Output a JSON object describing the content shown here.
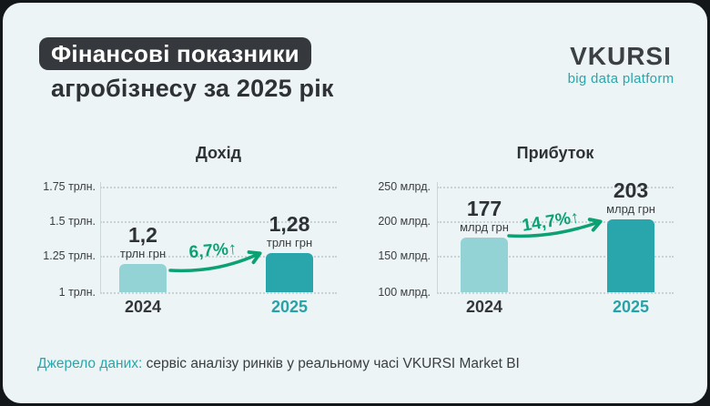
{
  "header": {
    "title_badge": "Фінансові показники",
    "title_line2": "агробізнесу за 2025 рік",
    "logo": {
      "name": "VKURSI",
      "tagline": "big data platform"
    }
  },
  "footer": {
    "source_label": "Джерело даних:",
    "source_text": " сервіс аналізу ринків у реальному часі VKURSI Market BI"
  },
  "colors": {
    "outer_background": "#14171a",
    "card_background": "#edf4f6",
    "badge_background": "#35383c",
    "accent_teal": "#26a3a9",
    "bar_2024": "#93d3d5",
    "bar_2025": "#29a6ab",
    "growth_green": "#0ba173",
    "dark_text": "#2e3236"
  },
  "chart_data": [
    {
      "type": "bar",
      "title": "Дохід",
      "categories": [
        "2024",
        "2025"
      ],
      "values": [
        1.2,
        1.28
      ],
      "value_labels": [
        "1,2",
        "1,28"
      ],
      "unit": "трлн грн",
      "growth_label": "6,7%↑",
      "y_ticks": [
        "1 трлн.",
        "1.25 трлн.",
        "1.5 трлн.",
        "1.75 трлн."
      ],
      "ylim": [
        1,
        1.75
      ],
      "grid": true,
      "legend": "none",
      "bar_colors": [
        "#93d3d5",
        "#29a6ab"
      ]
    },
    {
      "type": "bar",
      "title": "Прибуток",
      "categories": [
        "2024",
        "2025"
      ],
      "values": [
        177,
        203
      ],
      "value_labels": [
        "177",
        "203"
      ],
      "unit": "млрд грн",
      "growth_label": "14,7%↑",
      "y_ticks": [
        "100 млрд.",
        "150 млрд.",
        "200 млрд.",
        "250 млрд."
      ],
      "ylim": [
        100,
        250
      ],
      "grid": true,
      "legend": "none",
      "bar_colors": [
        "#93d3d5",
        "#29a6ab"
      ]
    }
  ]
}
